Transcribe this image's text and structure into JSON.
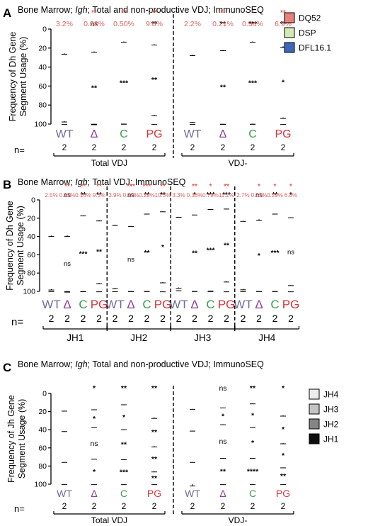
{
  "colors": {
    "WT": "#6b6e9a",
    "Δ": "#8a3e9e",
    "C": "#3a9a4a",
    "PG": "#d8343c",
    "pct": "#e06060",
    "DQ52": "#e8807c",
    "DSP": "#d3e9b6",
    "DFL16.1": "#3d67b9",
    "JH4": "#ececec",
    "JH3": "#c4c4c4",
    "JH2": "#858585",
    "JH1": "#0e0e0e"
  },
  "chart_data": [
    {
      "type": "bar",
      "stacked": true,
      "panel": "A",
      "title": "Bone Marrow; Igh; Total and non-productive VDJ; ImmunoSEQ",
      "ylabel": "Frequency of Dh Gene\nSegment Usage (%)",
      "ylim": [
        0,
        100
      ],
      "yticks": [
        "0",
        "20",
        "40",
        "60",
        "80",
        "100"
      ],
      "categories": [
        "WT",
        "Δ",
        "C",
        "PG",
        "WT",
        "Δ",
        "C",
        "PG"
      ],
      "n_label": "n=",
      "n": [
        "2",
        "2",
        "2",
        "2",
        "2",
        "2",
        "2",
        "2"
      ],
      "groups": [
        {
          "label": "Total VDJ",
          "start": 0,
          "end": 3
        },
        {
          "label": "VDJ-",
          "start": 4,
          "end": 7
        }
      ],
      "dividers_after": [
        3
      ],
      "series": [
        {
          "name": "DFL16.1",
          "values": [
            25.5,
            23.5,
            13,
            16,
            27,
            22,
            13,
            18
          ],
          "errors": [
            1,
            1,
            0.8,
            0.8,
            1,
            0.8,
            0.8,
            1.5
          ],
          "stars": [
            "",
            "ns",
            "",
            "**",
            "",
            "**",
            "***",
            "**"
          ]
        },
        {
          "name": "DSP",
          "values": [
            71.3,
            76.2,
            86.5,
            74.2,
            70.8,
            77.8,
            86.7,
            75.1
          ],
          "errors": [
            1,
            1,
            0.5,
            1,
            0.5,
            0.5,
            0.5,
            1
          ],
          "stars": [
            "",
            "**",
            "***",
            "**",
            "",
            "**",
            "***",
            "*"
          ]
        },
        {
          "name": "DQ52",
          "values": [
            3.2,
            0.28,
            0.5,
            9.8,
            2.2,
            0.21,
            0.34,
            6.9
          ],
          "errors": [
            0.3,
            0.2,
            0.2,
            0.5,
            0.3,
            0.2,
            0.2,
            0.5
          ],
          "stars": [
            "",
            "",
            "",
            "",
            "",
            "",
            "",
            ""
          ]
        }
      ],
      "top_stars": [
        "",
        "**",
        "**",
        "**",
        "",
        "**",
        "*",
        "**"
      ],
      "top_labels": [
        "3.2%",
        "0.28%",
        "0.50%",
        "9.8%",
        "2.2%",
        "0.21%",
        "0.34%",
        "6.9%"
      ],
      "legend": [
        "DQ52",
        "DSP",
        "DFL16.1"
      ],
      "legend_position": "top-right"
    },
    {
      "type": "bar",
      "stacked": true,
      "panel": "B",
      "title": "Bone Marrow; Igh; Total VDJ; ImmunoSEQ",
      "ylabel": "Frequency of Dh Gene\nSegment Usage (%)",
      "ylim": [
        0,
        100
      ],
      "yticks": [
        "0",
        "20",
        "40",
        "60",
        "80",
        "100"
      ],
      "categories": [
        "WT",
        "Δ",
        "C",
        "PG",
        "WT",
        "Δ",
        "C",
        "PG",
        "WT",
        "Δ",
        "C",
        "PG",
        "WT",
        "Δ",
        "C",
        "PG"
      ],
      "n_label": "n=",
      "n": [
        "2",
        "2",
        "2",
        "2",
        "2",
        "2",
        "2",
        "2",
        "2",
        "2",
        "2",
        "2",
        "2",
        "2",
        "2",
        "2"
      ],
      "groups": [
        {
          "label": "JH1",
          "start": 0,
          "end": 3
        },
        {
          "label": "JH2",
          "start": 4,
          "end": 7
        },
        {
          "label": "JH3",
          "start": 8,
          "end": 11
        },
        {
          "label": "JH4",
          "start": 12,
          "end": 15
        }
      ],
      "dividers_after": [
        3,
        7,
        11
      ],
      "series": [
        {
          "name": "DFL16.1",
          "values": [
            39,
            38.5,
            17,
            22,
            27,
            28.5,
            15,
            12.5,
            18.5,
            16,
            10,
            9.5,
            23,
            21,
            15,
            19
          ],
          "errors": [
            1,
            1.5,
            0.5,
            1,
            1,
            0.5,
            0.5,
            0.5,
            0.5,
            0.5,
            0.5,
            0.5,
            0.5,
            1.5,
            0.5,
            0.5
          ],
          "stars": [
            "",
            "ns",
            "**",
            "**",
            "",
            "ns",
            "**",
            "**",
            "",
            "*",
            "***",
            "***",
            "",
            "ns",
            "**",
            "*"
          ]
        },
        {
          "name": "DSP",
          "values": [
            58.5,
            61.37,
            82.84,
            68.7,
            69.1,
            71.31,
            84.71,
            77.2,
            77.2,
            83.62,
            89.21,
            79.3,
            74.3,
            78.67,
            84.71,
            74.2
          ],
          "errors": [
            1,
            1,
            0.5,
            1,
            1,
            0.5,
            0.5,
            1,
            1,
            0.5,
            0.5,
            1,
            1,
            0.5,
            0.5,
            0.5
          ],
          "stars": [
            "",
            "ns",
            "***",
            "**",
            "",
            "ns",
            "**",
            "*",
            "",
            "**",
            "***",
            "**",
            "",
            "*",
            "***",
            "ns"
          ]
        },
        {
          "name": "DQ52",
          "values": [
            2.5,
            0.13,
            0.16,
            9.3,
            3.9,
            0.19,
            0.29,
            10.3,
            3.3,
            0.38,
            0.79,
            11.2,
            2.7,
            0.33,
            0.29,
            6.8
          ],
          "errors": [
            0.3,
            0.2,
            0.2,
            0.5,
            0.3,
            0.2,
            0.2,
            0.5,
            0.3,
            0.2,
            0.2,
            0.5,
            0.3,
            0.2,
            0.2,
            0.5
          ],
          "stars": [
            "",
            "",
            "",
            "",
            "",
            "",
            "",
            "",
            "",
            "",
            "",
            "",
            "",
            "",
            "",
            ""
          ]
        }
      ],
      "top_stars": [
        "",
        "**",
        "**",
        "**",
        "",
        "***",
        "***",
        "**",
        "",
        "**",
        "*",
        "**",
        "",
        "*",
        "*",
        "*"
      ],
      "top_labels": [
        "2.5%",
        "0.13%",
        "0.16%",
        "9.3%",
        "3.9%",
        "0.19%",
        "0.29%",
        "10.3%",
        "3.3%",
        "0.38%",
        "0.79%",
        "11.2%",
        "2.7%",
        "0.33%",
        "0.29%",
        "6.8%"
      ]
    },
    {
      "type": "bar",
      "stacked": true,
      "panel": "C",
      "title": "Bone Marrow; Igh; Total and non-productive VDJ; ImmunoSEQ",
      "ylabel": "Frequency of Jh Gene\nSegment Usage (%)",
      "ylim": [
        0,
        100
      ],
      "yticks": [
        "0",
        "20",
        "40",
        "60",
        "80",
        "100"
      ],
      "categories": [
        "WT",
        "Δ",
        "C",
        "PG",
        "WT",
        "Δ",
        "C",
        "PG"
      ],
      "n_label": "n=",
      "n": [
        "2",
        "2",
        "2",
        "2",
        "2",
        "2",
        "2",
        "2"
      ],
      "groups": [
        {
          "label": "Total VDJ",
          "start": 0,
          "end": 3
        },
        {
          "label": "VDJ-",
          "start": 4,
          "end": 7
        }
      ],
      "dividers_after": [
        3
      ],
      "series": [
        {
          "name": "JH1",
          "values": [
            19,
            17.5,
            12,
            26.5,
            17,
            15.5,
            11,
            24
          ],
          "errors": [
            0.5,
            0.5,
            0.5,
            1,
            0.5,
            0.5,
            0.5,
            1
          ],
          "stars": [
            "",
            "*",
            "**",
            "**",
            "",
            "ns",
            "**",
            "*"
          ]
        },
        {
          "name": "JH2",
          "values": [
            22.5,
            19.5,
            27.5,
            31.5,
            24,
            18.5,
            26,
            30.5
          ],
          "errors": [
            0.5,
            0.5,
            0.5,
            1,
            0.5,
            0.5,
            0.5,
            1
          ],
          "stars": [
            "",
            "*",
            "*",
            "**",
            "",
            "*",
            "*",
            "*"
          ]
        },
        {
          "name": "JH3",
          "values": [
            34,
            35,
            33,
            28,
            34.5,
            37,
            34,
            27
          ],
          "errors": [
            0.5,
            0.5,
            0.5,
            0.5,
            0.5,
            0.5,
            0.5,
            0.5
          ],
          "stars": [
            "",
            "ns",
            "**",
            "**",
            "",
            "ns",
            "*",
            "*"
          ]
        },
        {
          "name": "JH4",
          "values": [
            24.5,
            28,
            27.5,
            14,
            24.5,
            29,
            29,
            18.5
          ],
          "errors": [
            0.5,
            0.5,
            0.5,
            0.5,
            2,
            0.5,
            0.5,
            0.5
          ],
          "stars": [
            "",
            "*",
            "***",
            "**",
            "",
            "**",
            "****",
            "**"
          ]
        }
      ],
      "top_stars": [
        "",
        "",
        "",
        "",
        "",
        "",
        "",
        ""
      ],
      "top_labels": [
        "",
        "",
        "",
        "",
        "",
        "",
        "",
        ""
      ],
      "legend": [
        "JH4",
        "JH3",
        "JH2",
        "JH1"
      ],
      "legend_position": "top-right"
    }
  ]
}
